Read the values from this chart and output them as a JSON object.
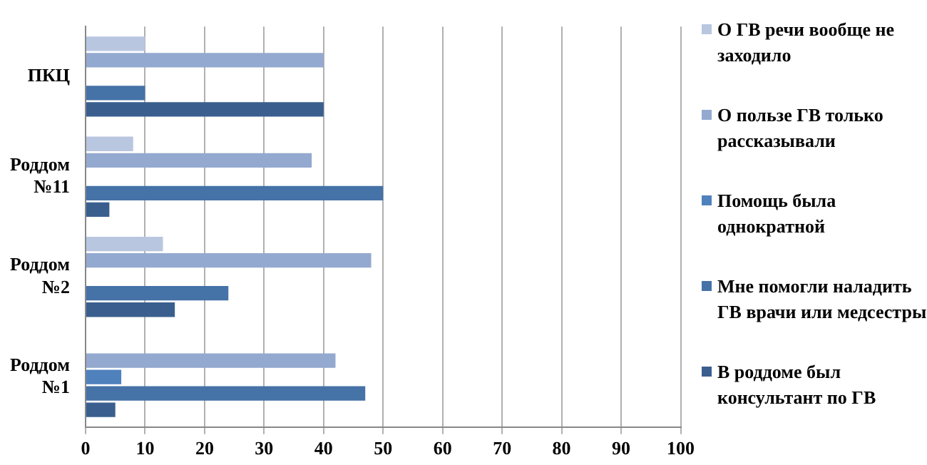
{
  "chart_data": {
    "type": "bar",
    "orientation": "horizontal",
    "categories": [
      "ПКЦ",
      "Роддом №11",
      "Роддом №2",
      "Роддом №1"
    ],
    "series": [
      {
        "name": "О ГВ речи вообще не заходило",
        "color": "#b9c6e0",
        "values": [
          10,
          8,
          13,
          null
        ]
      },
      {
        "name": "О пользе ГВ только рассказывали",
        "color": "#93a9cf",
        "values": [
          40,
          38,
          48,
          42
        ]
      },
      {
        "name": "Помощь была однократной",
        "color": "#4f81bd",
        "values": [
          null,
          null,
          null,
          6
        ]
      },
      {
        "name": "Мне помогли наладить ГВ врачи или медсестры",
        "color": "#4572a7",
        "values": [
          10,
          50,
          24,
          47
        ]
      },
      {
        "name": "В роддоме был консультант по ГВ",
        "color": "#3a5f8f",
        "values": [
          40,
          4,
          15,
          5
        ]
      }
    ],
    "xlim": [
      0,
      100
    ],
    "xticks": [
      0,
      10,
      20,
      30,
      40,
      50,
      60,
      70,
      80,
      90,
      100
    ],
    "grid": "x",
    "legend": "right"
  }
}
